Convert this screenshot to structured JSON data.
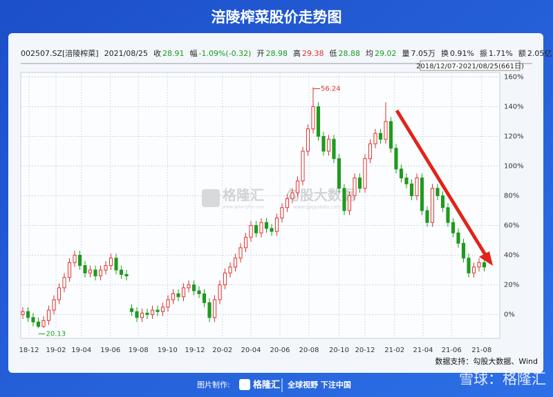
{
  "chart_data": {
    "type": "candlestick",
    "title": "涪陵榨菜股价走势图",
    "quote": [
      {
        "label": "002507.SZ[涪陵榨菜]"
      },
      {
        "label": "2021/08/25"
      },
      {
        "label": "收",
        "value": "28.91",
        "color": "#1a9a1a"
      },
      {
        "label": "幅",
        "value": "-1.09%(-0.32)",
        "color": "#1a9a1a"
      },
      {
        "label": "开",
        "value": "28.98",
        "color": "#1a9a1a"
      },
      {
        "label": "高",
        "value": "29.38",
        "color": "#e0302a"
      },
      {
        "label": "低",
        "value": "28.88",
        "color": "#1a9a1a"
      },
      {
        "label": "均",
        "value": "29.02",
        "color": "#1a9a1a"
      },
      {
        "label": "量",
        "value": "7.05万"
      },
      {
        "label": "换",
        "value": "0.91%"
      },
      {
        "label": "振",
        "value": "1.71%"
      },
      {
        "label": "额",
        "value": "2.05亿"
      }
    ],
    "range": "2018/12/07-2021/08/25(661日)",
    "up_color": "#e0302a",
    "down_color": "#1f9a1f",
    "ylim": [
      -16,
      163
    ],
    "yticks": [
      {
        "value": 0,
        "label": "0%"
      },
      {
        "value": 20,
        "label": "20%"
      },
      {
        "value": 40,
        "label": "40%"
      },
      {
        "value": 60,
        "label": "60%"
      },
      {
        "value": 80,
        "label": "80%"
      },
      {
        "value": 100,
        "label": "100%"
      },
      {
        "value": 120,
        "label": "120%"
      },
      {
        "value": 140,
        "label": "140%"
      },
      {
        "value": 160,
        "label": "160%"
      }
    ],
    "xlim": [
      -0.4,
      92
    ],
    "xticks": [
      {
        "value": 1.2,
        "label": "18-12"
      },
      {
        "value": 6.4,
        "label": "19-02"
      },
      {
        "value": 11.3,
        "label": "19-04"
      },
      {
        "value": 16.9,
        "label": "19-06"
      },
      {
        "value": 22.3,
        "label": "19-08"
      },
      {
        "value": 27.9,
        "label": "19-10"
      },
      {
        "value": 33.2,
        "label": "19-12"
      },
      {
        "value": 38.5,
        "label": "20-02"
      },
      {
        "value": 44,
        "label": "20-04"
      },
      {
        "value": 49.6,
        "label": "20-06"
      },
      {
        "value": 55.2,
        "label": "20-08"
      },
      {
        "value": 61,
        "label": "20-10"
      },
      {
        "value": 66,
        "label": "20-12"
      },
      {
        "value": 71.7,
        "label": "21-02"
      },
      {
        "value": 77.2,
        "label": "21-04"
      },
      {
        "value": 82.7,
        "label": "21-06"
      },
      {
        "value": 88.5,
        "label": "21-08"
      }
    ],
    "open": [
      0,
      2,
      -2,
      -5,
      -8,
      -4,
      3,
      10,
      18,
      25,
      35,
      40,
      33,
      28,
      30,
      26,
      30,
      33,
      38,
      30,
      27,
      4,
      2,
      -2,
      1,
      0,
      3,
      2,
      5,
      10,
      14,
      12,
      18,
      20,
      16,
      14,
      8,
      -2,
      10,
      20,
      28,
      32,
      38,
      45,
      52,
      60,
      55,
      62,
      58,
      56,
      65,
      72,
      78,
      82,
      90,
      110,
      125,
      140,
      120,
      110,
      118,
      105,
      85,
      70,
      80,
      92,
      85,
      105,
      115,
      122,
      118,
      130,
      112,
      98,
      92,
      88,
      80,
      92,
      70,
      62,
      85,
      80,
      72,
      62,
      55,
      48,
      38,
      28,
      32,
      35
    ],
    "high": [
      5,
      5,
      1,
      -2,
      -1,
      6,
      13,
      21,
      28,
      38,
      43,
      43,
      36,
      33,
      33,
      33,
      36,
      41,
      41,
      33,
      30,
      7,
      5,
      4,
      4,
      6,
      6,
      8,
      13,
      17,
      17,
      21,
      23,
      23,
      19,
      17,
      11,
      13,
      23,
      31,
      35,
      41,
      48,
      55,
      63,
      63,
      65,
      65,
      61,
      68,
      75,
      81,
      85,
      93,
      113,
      128,
      153,
      143,
      123,
      121,
      121,
      108,
      88,
      83,
      95,
      95,
      108,
      118,
      125,
      125,
      143,
      133,
      115,
      101,
      95,
      91,
      95,
      95,
      73,
      88,
      88,
      83,
      75,
      65,
      58,
      51,
      41,
      35,
      38,
      38
    ],
    "low": [
      -3,
      -5,
      -8,
      -9.3,
      -9,
      -7,
      0,
      7,
      15,
      22,
      32,
      30,
      25,
      25,
      23,
      23,
      27,
      30,
      27,
      24,
      23,
      -1,
      -5,
      -5,
      -3,
      -3,
      -1,
      -1,
      2,
      7,
      9,
      9,
      15,
      13,
      11,
      5,
      -5,
      -5,
      7,
      17,
      25,
      29,
      35,
      42,
      49,
      52,
      52,
      55,
      53,
      53,
      62,
      69,
      75,
      79,
      87,
      107,
      122,
      117,
      107,
      107,
      102,
      82,
      67,
      67,
      77,
      82,
      82,
      102,
      112,
      115,
      115,
      109,
      95,
      89,
      85,
      77,
      77,
      67,
      59,
      59,
      77,
      69,
      59,
      52,
      45,
      35,
      25,
      25,
      29,
      29
    ],
    "close": [
      2,
      -2,
      -5,
      -8,
      -4,
      3,
      10,
      18,
      25,
      35,
      40,
      33,
      28,
      30,
      26,
      30,
      33,
      38,
      30,
      27,
      26,
      2,
      -2,
      1,
      0,
      3,
      2,
      5,
      10,
      14,
      12,
      18,
      20,
      16,
      14,
      8,
      -2,
      10,
      20,
      28,
      32,
      38,
      45,
      52,
      60,
      55,
      62,
      58,
      56,
      65,
      72,
      78,
      82,
      90,
      110,
      125,
      140,
      120,
      110,
      118,
      105,
      85,
      70,
      80,
      92,
      85,
      105,
      115,
      122,
      118,
      130,
      112,
      98,
      92,
      88,
      80,
      92,
      70,
      62,
      85,
      80,
      72,
      62,
      55,
      48,
      38,
      28,
      32,
      35,
      32
    ],
    "annotations": [
      {
        "label": "56.24",
        "index": 56,
        "value": 153
      },
      {
        "label": "20.13",
        "index": 3,
        "value": -9.3
      }
    ],
    "source": "数据支持：勾股大数据、Wind"
  },
  "footer": {
    "made_by": "图片制作:",
    "brand": "格隆汇",
    "slogan": "全球视野 下注中国",
    "watermark": "雪球：格隆汇"
  },
  "logo": {
    "name": "格隆汇",
    "site": "www.gelonghui.com",
    "name2": "勾股大数据",
    "site2": "www.gogudata.com"
  }
}
